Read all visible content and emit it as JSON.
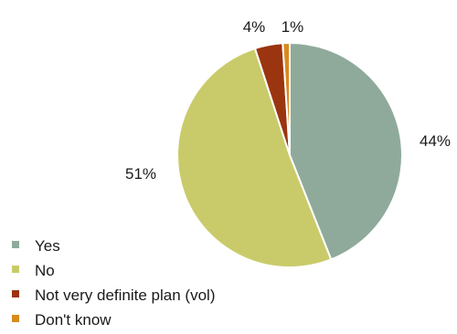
{
  "chart_data": {
    "type": "pie",
    "title": "",
    "categories": [
      "Yes",
      "No",
      "Not very definite plan (vol)",
      "Don't know"
    ],
    "values": [
      44,
      51,
      4,
      1
    ],
    "value_labels": [
      "44%",
      "51%",
      "4%",
      "1%"
    ],
    "colors": [
      "#8faa9b",
      "#c9cb6a",
      "#9a3510",
      "#d98a1c"
    ],
    "legend_position": "bottom-left",
    "start_angle": "top",
    "direction": "clockwise"
  }
}
